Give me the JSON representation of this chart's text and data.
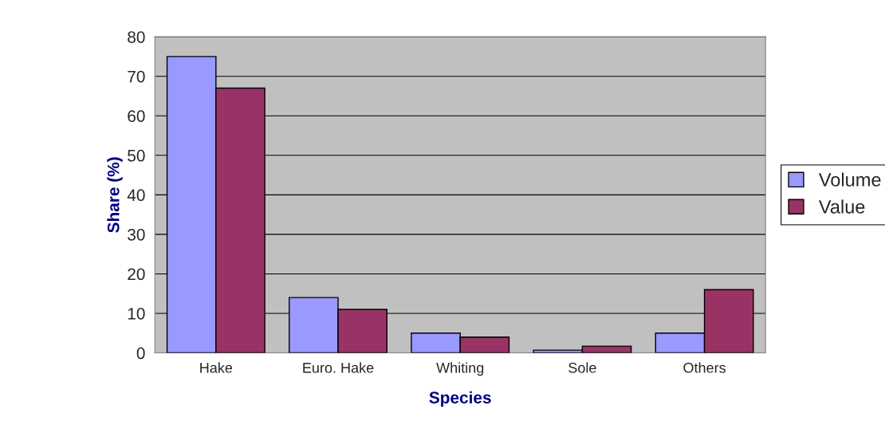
{
  "chart_data": {
    "type": "bar",
    "xlabel": "Species",
    "ylabel": "Share (%)",
    "categories": [
      "Hake",
      "Euro. Hake",
      "Whiting",
      "Sole",
      "Others"
    ],
    "series": [
      {
        "name": "Volume",
        "color": "#9999ff",
        "values": [
          75,
          14,
          5,
          0.7,
          5
        ]
      },
      {
        "name": "Value",
        "color": "#993366",
        "values": [
          67,
          11,
          4,
          1.7,
          16
        ]
      }
    ],
    "ylim": [
      0,
      80
    ],
    "yticks": [
      0,
      10,
      20,
      30,
      40,
      50,
      60,
      70,
      80
    ],
    "grid": "y",
    "legend": "right"
  }
}
